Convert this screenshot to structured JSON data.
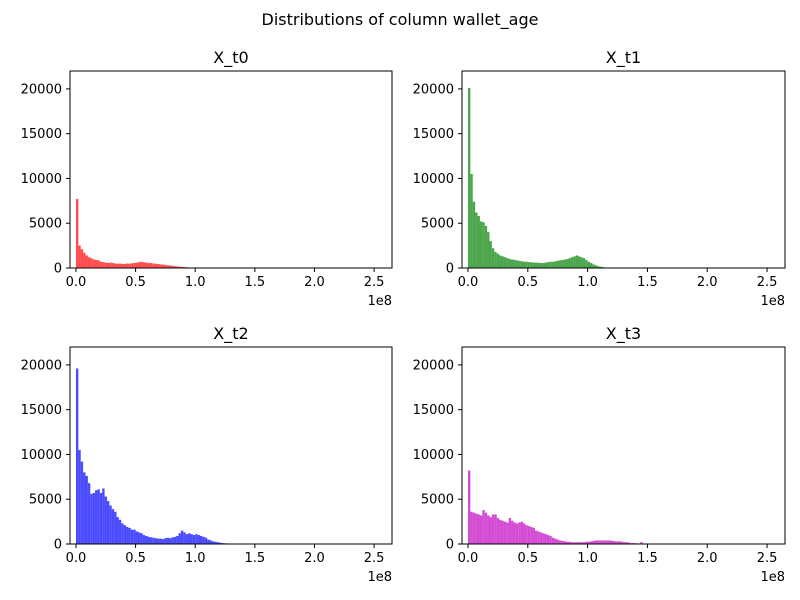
{
  "figure": {
    "suptitle": "Distributions of column wallet_age"
  },
  "chart_data": [
    {
      "type": "bar",
      "title": "X_t0",
      "color": "#ff0000",
      "alpha": 0.7,
      "xlim": [
        -0.05,
        2.65
      ],
      "ylim": [
        0,
        22000
      ],
      "x_ticks": [
        0,
        0.5,
        1.0,
        1.5,
        2.0,
        2.5
      ],
      "x_tick_labels": [
        "0.0",
        "0.5",
        "1.0",
        "1.5",
        "2.0",
        "2.5"
      ],
      "x_offset_label": "1e8",
      "y_ticks": [
        0,
        5000,
        10000,
        15000,
        20000
      ],
      "y_tick_labels": [
        "0",
        "5000",
        "10000",
        "15000",
        "20000"
      ],
      "bin_start": 0,
      "bin_width": 0.02,
      "values": [
        7700,
        2500,
        2100,
        1700,
        1400,
        1200,
        1100,
        950,
        900,
        850,
        700,
        650,
        600,
        560,
        600,
        550,
        500,
        480,
        500,
        450,
        450,
        500,
        480,
        520,
        560,
        600,
        650,
        700,
        650,
        600,
        550,
        550,
        500,
        480,
        450,
        400,
        380,
        350,
        300,
        280,
        250,
        200,
        180,
        150,
        120,
        100,
        80,
        60,
        50,
        40
      ]
    },
    {
      "type": "bar",
      "title": "X_t1",
      "color": "#008000",
      "alpha": 0.7,
      "xlim": [
        -0.05,
        2.65
      ],
      "ylim": [
        0,
        22000
      ],
      "x_ticks": [
        0,
        0.5,
        1.0,
        1.5,
        2.0,
        2.5
      ],
      "x_tick_labels": [
        "0.0",
        "0.5",
        "1.0",
        "1.5",
        "2.0",
        "2.5"
      ],
      "x_offset_label": "1e8",
      "y_ticks": [
        0,
        5000,
        10000,
        15000,
        20000
      ],
      "y_tick_labels": [
        "0",
        "5000",
        "10000",
        "15000",
        "20000"
      ],
      "bin_start": 0,
      "bin_width": 0.02,
      "values": [
        20100,
        10500,
        7400,
        6200,
        5800,
        5200,
        5100,
        4700,
        4000,
        3000,
        2200,
        1800,
        1600,
        1400,
        1300,
        1200,
        1100,
        1000,
        950,
        900,
        850,
        800,
        750,
        700,
        700,
        650,
        650,
        600,
        600,
        600,
        550,
        550,
        600,
        650,
        700,
        700,
        750,
        800,
        850,
        900,
        950,
        1000,
        1100,
        1200,
        1300,
        1400,
        1300,
        1200,
        1100,
        900,
        700,
        550,
        400,
        300,
        200,
        150,
        100,
        60,
        40,
        20
      ]
    },
    {
      "type": "bar",
      "title": "X_t2",
      "color": "#0000ff",
      "alpha": 0.7,
      "xlim": [
        -0.05,
        2.65
      ],
      "ylim": [
        0,
        22000
      ],
      "x_ticks": [
        0,
        0.5,
        1.0,
        1.5,
        2.0,
        2.5
      ],
      "x_tick_labels": [
        "0.0",
        "0.5",
        "1.0",
        "1.5",
        "2.0",
        "2.5"
      ],
      "x_offset_label": "1e8",
      "y_ticks": [
        0,
        5000,
        10000,
        15000,
        20000
      ],
      "y_tick_labels": [
        "0",
        "5000",
        "10000",
        "15000",
        "20000"
      ],
      "bin_start": 0,
      "bin_width": 0.02,
      "values": [
        19600,
        10500,
        9200,
        8000,
        7600,
        6800,
        5600,
        5700,
        6000,
        6100,
        5700,
        6200,
        5300,
        4800,
        4300,
        3900,
        3600,
        3000,
        2700,
        2300,
        2100,
        1900,
        1800,
        1600,
        1600,
        1400,
        1300,
        1200,
        1000,
        900,
        800,
        750,
        700,
        650,
        600,
        600,
        550,
        650,
        700,
        650,
        750,
        800,
        900,
        1200,
        1500,
        1300,
        1100,
        1200,
        1100,
        1000,
        1100,
        1000,
        900,
        800,
        700,
        500,
        400,
        300,
        250,
        200,
        150,
        100,
        80,
        60,
        40,
        20
      ]
    },
    {
      "type": "bar",
      "title": "X_t3",
      "color": "#c000c0",
      "alpha": 0.7,
      "xlim": [
        -0.05,
        2.65
      ],
      "ylim": [
        0,
        22000
      ],
      "x_ticks": [
        0,
        0.5,
        1.0,
        1.5,
        2.0,
        2.5
      ],
      "x_tick_labels": [
        "0.0",
        "0.5",
        "1.0",
        "1.5",
        "2.0",
        "2.5"
      ],
      "x_offset_label": "1e8",
      "y_ticks": [
        0,
        5000,
        10000,
        15000,
        20000
      ],
      "y_tick_labels": [
        "0",
        "5000",
        "10000",
        "15000",
        "20000"
      ],
      "bin_start": 0,
      "bin_width": 0.02,
      "values": [
        8200,
        3600,
        3500,
        3400,
        3300,
        3200,
        3800,
        3500,
        3200,
        3000,
        3300,
        3300,
        2900,
        2700,
        2600,
        2500,
        2400,
        2900,
        2600,
        2400,
        2300,
        2400,
        2500,
        2300,
        2100,
        2000,
        1900,
        1800,
        1500,
        1400,
        1300,
        1200,
        1100,
        1000,
        900,
        700,
        600,
        500,
        400,
        350,
        300,
        250,
        250,
        200,
        200,
        200,
        200,
        200,
        200,
        250,
        250,
        300,
        350,
        400,
        400,
        400,
        400,
        400,
        400,
        400,
        350,
        300,
        300,
        300,
        250,
        200,
        200,
        150,
        100,
        100,
        80,
        60,
        200,
        60,
        40,
        30,
        20,
        20,
        20,
        10,
        10
      ]
    }
  ]
}
